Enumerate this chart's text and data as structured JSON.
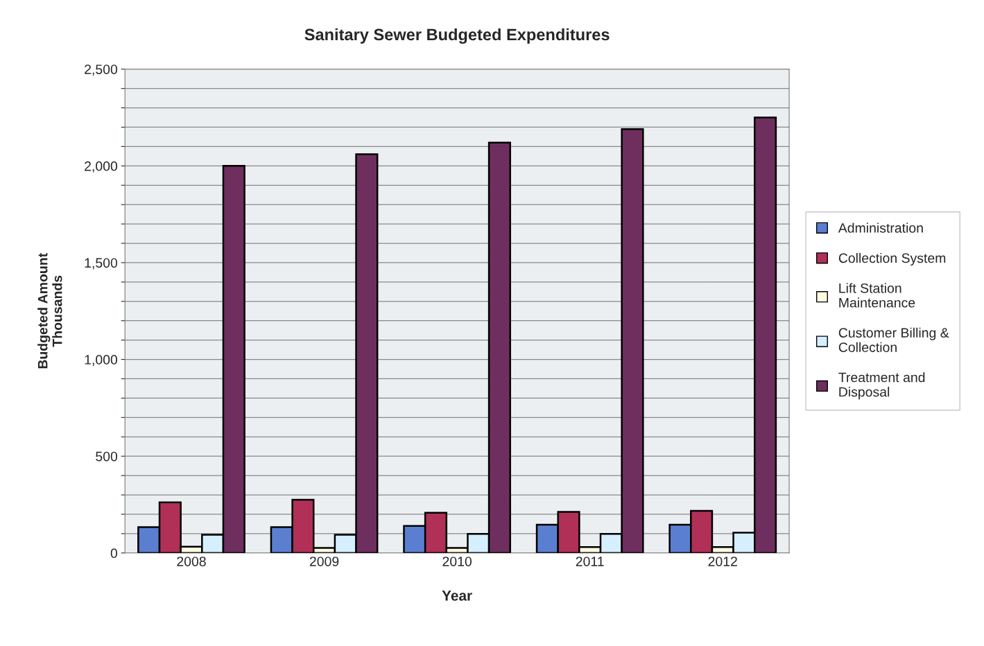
{
  "chart_data": {
    "type": "bar",
    "title": "Sanitary Sewer Budgeted Expenditures",
    "xlabel": "Year",
    "ylabel": "Budgeted Amount\nThousands",
    "categories": [
      "2008",
      "2009",
      "2010",
      "2011",
      "2012"
    ],
    "series": [
      {
        "name": "Administration",
        "color": "#5b7fd0",
        "values": [
          134,
          134,
          140,
          146,
          146
        ]
      },
      {
        "name": "Collection System",
        "color": "#b03058",
        "values": [
          262,
          275,
          208,
          212,
          218
        ]
      },
      {
        "name": "Lift Station\nMaintenance",
        "color": "#fffbe0",
        "values": [
          32,
          26,
          26,
          31,
          31
        ]
      },
      {
        "name": "Customer Billing &\nCollection",
        "color": "#d6efff",
        "values": [
          94,
          94,
          99,
          99,
          105
        ]
      },
      {
        "name": "Treatment and\nDisposal",
        "color": "#6e2f5e",
        "values": [
          2000,
          2060,
          2120,
          2190,
          2250
        ]
      }
    ],
    "ylim": [
      0,
      2500
    ],
    "yticks": [
      {
        "value": 0,
        "label": "0"
      },
      {
        "value": 100,
        "label": null
      },
      {
        "value": 200,
        "label": null
      },
      {
        "value": 300,
        "label": null
      },
      {
        "value": 400,
        "label": null
      },
      {
        "value": 500,
        "label": "500"
      },
      {
        "value": 600,
        "label": null
      },
      {
        "value": 700,
        "label": null
      },
      {
        "value": 800,
        "label": null
      },
      {
        "value": 900,
        "label": null
      },
      {
        "value": 1000,
        "label": "1,000"
      },
      {
        "value": 1100,
        "label": null
      },
      {
        "value": 1200,
        "label": null
      },
      {
        "value": 1300,
        "label": null
      },
      {
        "value": 1400,
        "label": null
      },
      {
        "value": 1500,
        "label": "1,500"
      },
      {
        "value": 1600,
        "label": null
      },
      {
        "value": 1700,
        "label": null
      },
      {
        "value": 1800,
        "label": null
      },
      {
        "value": 1900,
        "label": null
      },
      {
        "value": 2000,
        "label": "2,000"
      },
      {
        "value": 2100,
        "label": null
      },
      {
        "value": 2200,
        "label": null
      },
      {
        "value": 2300,
        "label": null
      },
      {
        "value": 2400,
        "label": null
      },
      {
        "value": 2500,
        "label": "2,500"
      }
    ],
    "grid": "y",
    "legend": "right"
  }
}
